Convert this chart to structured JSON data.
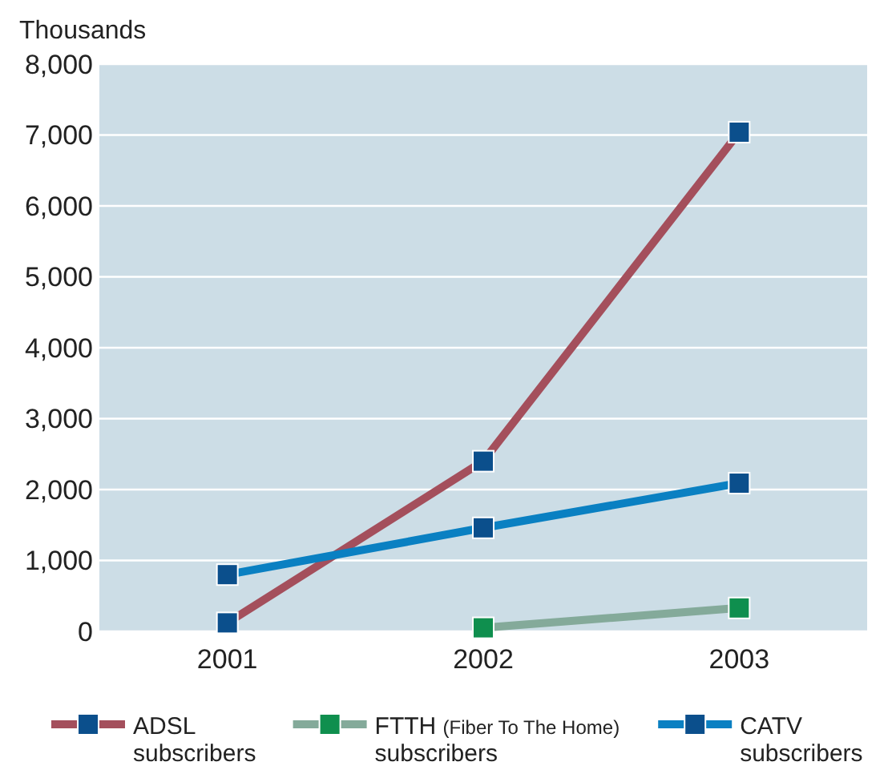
{
  "chart_data": {
    "type": "line",
    "ylabel": "Thousands",
    "categories": [
      "2001",
      "2002",
      "2003"
    ],
    "series": [
      {
        "name": "ADSL subscribers",
        "color": "#a44f5c",
        "values": [
          120,
          2400,
          7040
        ]
      },
      {
        "name": "FTTH (Fiber To The Home) subscribers",
        "color": "#84aa9a",
        "values": [
          null,
          50,
          330
        ]
      },
      {
        "name": "CATV subscribers",
        "color": "#0a80c2",
        "values": [
          800,
          1460,
          2090
        ]
      }
    ],
    "ylim": [
      0,
      8000
    ],
    "yticks": [
      {
        "value": 0,
        "label": "0"
      },
      {
        "value": 1000,
        "label": "1,000"
      },
      {
        "value": 2000,
        "label": "2,000"
      },
      {
        "value": 3000,
        "label": "3,000"
      },
      {
        "value": 4000,
        "label": "4,000"
      },
      {
        "value": 5000,
        "label": "5,000"
      },
      {
        "value": 6000,
        "label": "6,000"
      },
      {
        "value": 7000,
        "label": "7,000"
      },
      {
        "value": 8000,
        "label": "8,000"
      }
    ],
    "grid": "y",
    "legend": "bottom",
    "marker": "square",
    "line_style": "solid"
  }
}
